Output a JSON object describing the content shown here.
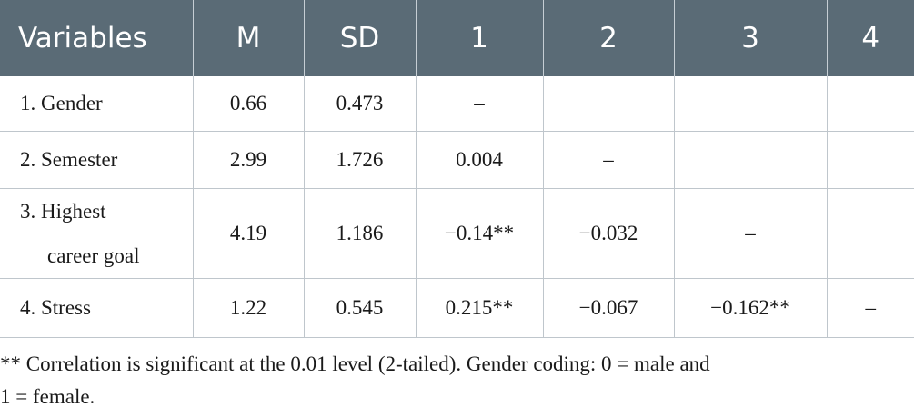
{
  "table": {
    "headers": [
      "Variables",
      "M",
      "SD",
      "1",
      "2",
      "3",
      "4"
    ],
    "rows": [
      {
        "variable": "1. Gender",
        "m": "0.66",
        "sd": "0.473",
        "c1": "–",
        "c2": "",
        "c3": "",
        "c4": ""
      },
      {
        "variable": "2. Semester",
        "m": "2.99",
        "sd": "1.726",
        "c1": "0.004",
        "c2": "–",
        "c3": "",
        "c4": ""
      },
      {
        "variable_line1": "3. Highest",
        "variable_line2": "career goal",
        "m": "4.19",
        "sd": "1.186",
        "c1": "−0.14**",
        "c2": "−0.032",
        "c3": "–",
        "c4": ""
      },
      {
        "variable": "4. Stress",
        "m": "1.22",
        "sd": "0.545",
        "c1": "0.215**",
        "c2": "−0.067",
        "c3": "−0.162**",
        "c4": "–"
      }
    ]
  },
  "note": {
    "line1": "** Correlation is significant at the 0.01 level (2-tailed). Gender coding: 0 = male and",
    "line2": "1 = female."
  }
}
